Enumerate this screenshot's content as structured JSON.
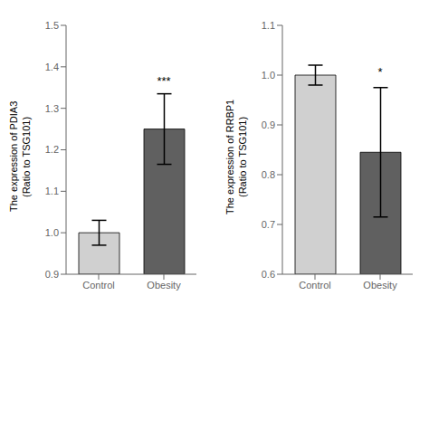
{
  "chart_data": [
    {
      "type": "bar",
      "y_label": "The expression of PDIA3\n(Ratio to TSG101)",
      "categories": [
        "Control",
        "Obesity"
      ],
      "values": [
        1.0,
        1.25
      ],
      "errors_low": [
        0.03,
        0.085
      ],
      "errors_high": [
        0.03,
        0.085
      ],
      "colors": [
        "#d0d0d0",
        "#606060"
      ],
      "ylim": [
        0.9,
        1.5
      ],
      "yticks": [
        0.9,
        {
          "value": 1.0,
          "label": "1.0"
        },
        1.1,
        1.2,
        1.3,
        1.4,
        1.5
      ],
      "annotations": [
        {
          "text": "***",
          "x": "Obesity",
          "y": 1.345
        }
      ]
    },
    {
      "type": "bar",
      "y_label": "The expression of RRBP1\n(Ratio to TSG101)",
      "categories": [
        "Control",
        "Obesity"
      ],
      "values": [
        1.0,
        0.845
      ],
      "errors_low": [
        0.02,
        0.13
      ],
      "errors_high": [
        0.02,
        0.13
      ],
      "colors": [
        "#d0d0d0",
        "#606060"
      ],
      "ylim": [
        0.6,
        1.1
      ],
      "yticks": [
        0.6,
        0.7,
        0.8,
        0.9,
        {
          "value": 1.0,
          "label": "1.0"
        },
        1.1
      ],
      "annotations": [
        {
          "text": "*",
          "x": "Obesity",
          "y": 0.99
        }
      ]
    }
  ]
}
